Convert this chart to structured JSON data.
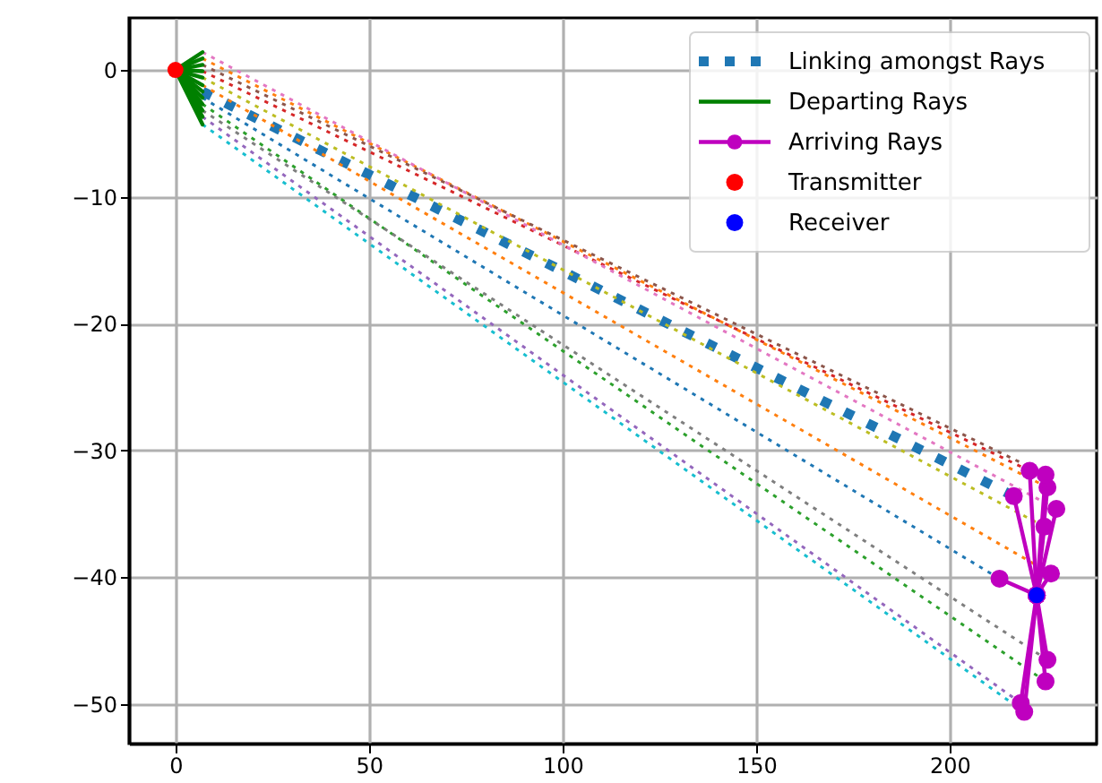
{
  "chart_data": {
    "type": "line",
    "xlim": [
      -12,
      238
    ],
    "ylim": [
      -53.1,
      4.1
    ],
    "xticks": [
      0,
      50,
      100,
      150,
      200
    ],
    "yticks": [
      -50,
      -40,
      -30,
      -20,
      -10,
      0
    ],
    "grid": true,
    "legend": "top right",
    "line_style": "dotted",
    "marker": "none",
    "series": [
      {
        "name": "Linking amongst Rays",
        "color": "#1f77b4",
        "x": [
          7,
          216.6
        ],
        "values": [
          -1.7,
          -33.6
        ]
      },
      {
        "color": "#ff7f0e",
        "x": [
          7,
          225.3
        ],
        "values": [
          0.9,
          -32.9
        ]
      },
      {
        "color": "#2ca02c",
        "x": [
          7,
          224.8
        ],
        "values": [
          -2.7,
          -48.2
        ]
      },
      {
        "color": "#d62728",
        "x": [
          7,
          220.7
        ],
        "values": [
          -0.1,
          -31.6
        ]
      },
      {
        "color": "#9467bd",
        "x": [
          7,
          218.4
        ],
        "values": [
          -3.7,
          -49.9
        ]
      },
      {
        "color": "#8c564b",
        "x": [
          7,
          224.8
        ],
        "values": [
          0.4,
          -31.9
        ]
      },
      {
        "color": "#e377c2",
        "x": [
          7,
          227.6
        ],
        "values": [
          1.4,
          -34.6
        ]
      },
      {
        "color": "#7f7f7f",
        "x": [
          7,
          225.3
        ],
        "values": [
          -3.2,
          -46.5
        ]
      },
      {
        "color": "#bcbd22",
        "x": [
          7,
          224.5
        ],
        "values": [
          -0.6,
          -36.0
        ]
      },
      {
        "color": "#17becf",
        "x": [
          7,
          219.3
        ],
        "values": [
          -4.3,
          -50.6
        ]
      },
      {
        "color": "#1f77b4",
        "x": [
          7,
          212.9
        ],
        "values": [
          -2.2,
          -40.1
        ]
      },
      {
        "color": "#ff7f0e",
        "x": [
          7,
          226.2
        ],
        "values": [
          -1.2,
          -39.7
        ]
      },
      {
        "name": "Departing Rays",
        "color": "#008000",
        "line_style": "solid",
        "x": [
          0,
          7
        ],
        "values": [
          0,
          -1.7
        ]
      },
      {
        "color": "#008000",
        "line_style": "solid",
        "x": [
          0,
          7
        ],
        "values": [
          0,
          0.9
        ]
      },
      {
        "color": "#008000",
        "line_style": "solid",
        "x": [
          0,
          7
        ],
        "values": [
          0,
          -2.7
        ]
      },
      {
        "color": "#008000",
        "line_style": "solid",
        "x": [
          0,
          7
        ],
        "values": [
          0,
          -0.1
        ]
      },
      {
        "color": "#008000",
        "line_style": "solid",
        "x": [
          0,
          7
        ],
        "values": [
          0,
          -3.7
        ]
      },
      {
        "color": "#008000",
        "line_style": "solid",
        "x": [
          0,
          7
        ],
        "values": [
          0,
          0.4
        ]
      },
      {
        "color": "#008000",
        "line_style": "solid",
        "x": [
          0,
          7
        ],
        "values": [
          0,
          1.4
        ]
      },
      {
        "color": "#008000",
        "line_style": "solid",
        "x": [
          0,
          7
        ],
        "values": [
          0,
          -3.2
        ]
      },
      {
        "color": "#008000",
        "line_style": "solid",
        "x": [
          0,
          7
        ],
        "values": [
          0,
          -0.6
        ]
      },
      {
        "color": "#008000",
        "line_style": "solid",
        "x": [
          0,
          7
        ],
        "values": [
          0,
          -4.3
        ]
      },
      {
        "color": "#008000",
        "line_style": "solid",
        "x": [
          0,
          7
        ],
        "values": [
          0,
          -2.2
        ]
      },
      {
        "color": "#008000",
        "line_style": "solid",
        "x": [
          0,
          7
        ],
        "values": [
          0,
          -1.2
        ]
      },
      {
        "name": "Arriving Rays",
        "color": "#bf00bf",
        "line_style": "solid",
        "marker": "circle",
        "x": [
          222.5,
          216.6
        ],
        "values": [
          -41.4,
          -33.6
        ]
      },
      {
        "color": "#bf00bf",
        "line_style": "solid",
        "marker": "circle",
        "x": [
          222.5,
          225.3
        ],
        "values": [
          -41.4,
          -32.9
        ]
      },
      {
        "color": "#bf00bf",
        "line_style": "solid",
        "marker": "circle",
        "x": [
          222.5,
          224.8
        ],
        "values": [
          -41.4,
          -48.2
        ]
      },
      {
        "color": "#bf00bf",
        "line_style": "solid",
        "marker": "circle",
        "x": [
          222.5,
          220.7
        ],
        "values": [
          -41.4,
          -31.6
        ]
      },
      {
        "color": "#bf00bf",
        "line_style": "solid",
        "marker": "circle",
        "x": [
          222.5,
          218.4
        ],
        "values": [
          -41.4,
          -49.9
        ]
      },
      {
        "color": "#bf00bf",
        "line_style": "solid",
        "marker": "circle",
        "x": [
          222.5,
          224.8
        ],
        "values": [
          -41.4,
          -31.9
        ]
      },
      {
        "color": "#bf00bf",
        "line_style": "solid",
        "marker": "circle",
        "x": [
          222.5,
          227.6
        ],
        "values": [
          -41.4,
          -34.6
        ]
      },
      {
        "color": "#bf00bf",
        "line_style": "solid",
        "marker": "circle",
        "x": [
          222.5,
          225.3
        ],
        "values": [
          -41.4,
          -46.5
        ]
      },
      {
        "color": "#bf00bf",
        "line_style": "solid",
        "marker": "circle",
        "x": [
          222.5,
          224.5
        ],
        "values": [
          -41.4,
          -36.0
        ]
      },
      {
        "color": "#bf00bf",
        "line_style": "solid",
        "marker": "circle",
        "x": [
          222.5,
          219.3
        ],
        "values": [
          -41.4,
          -50.6
        ]
      },
      {
        "color": "#bf00bf",
        "line_style": "solid",
        "marker": "circle",
        "x": [
          222.5,
          212.9
        ],
        "values": [
          -41.4,
          -40.1
        ]
      },
      {
        "color": "#bf00bf",
        "line_style": "solid",
        "marker": "circle",
        "x": [
          222.5,
          226.2
        ],
        "values": [
          -41.4,
          -39.7
        ]
      },
      {
        "name": "Transmitter",
        "type": "scatter",
        "marker": "circle",
        "color": "#ff0000",
        "x": [
          0
        ],
        "values": [
          0
        ]
      },
      {
        "name": "Receiver",
        "type": "scatter",
        "marker": "circle",
        "color": "#0000ff",
        "x": [
          222.5
        ],
        "values": [
          -41.4
        ]
      }
    ]
  }
}
